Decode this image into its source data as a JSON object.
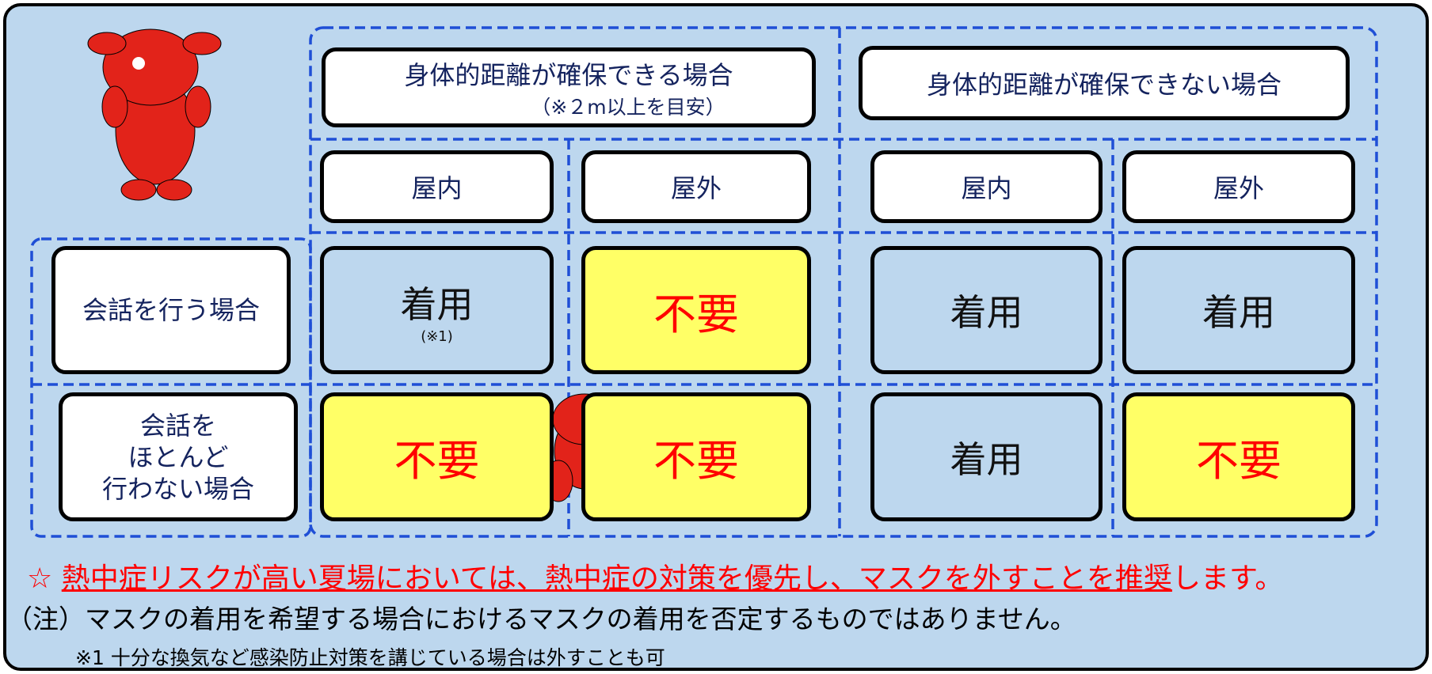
{
  "columns": [
    {
      "title": "身体的距離が確保できる場合",
      "note": "（※２m以上を目安）",
      "places": [
        "屋内",
        "屋外"
      ]
    },
    {
      "title": "身体的距離が確保できない場合",
      "places": [
        "屋内",
        "屋外"
      ]
    }
  ],
  "rows": [
    {
      "label": [
        "会話を行う場合"
      ],
      "cells": [
        {
          "text": "着用",
          "note": "(※1)",
          "color": "#bdd7ee",
          "text_color": "#111111"
        },
        {
          "text": "不要",
          "color": "#ffff66",
          "text_color": "#ff0000"
        },
        {
          "text": "着用",
          "color": "#bdd7ee",
          "text_color": "#111111"
        },
        {
          "text": "着用",
          "color": "#bdd7ee",
          "text_color": "#111111"
        }
      ]
    },
    {
      "label": [
        "会話を",
        "ほとんど",
        "行わない場合"
      ],
      "cells": [
        {
          "text": "不要",
          "color": "#ffff66",
          "text_color": "#ff0000"
        },
        {
          "text": "不要",
          "color": "#ffff66",
          "text_color": "#ff0000"
        },
        {
          "text": "着用",
          "color": "#bdd7ee",
          "text_color": "#111111"
        },
        {
          "text": "不要",
          "color": "#ffff66",
          "text_color": "#ff0000"
        }
      ]
    }
  ],
  "footer": {
    "recommendation": {
      "mark": "☆",
      "emphasis": "熱中症リスクが高い夏場においては、熱中症の対策を優先し、マスクを外すことを推奨",
      "rest": "します。"
    },
    "note": "（注）マスクの着用を希望する場合におけるマスクの着用を否定するものではありません。",
    "footnote": "※1 十分な換気など感染防止対策を講じている場合は外すことも可"
  }
}
